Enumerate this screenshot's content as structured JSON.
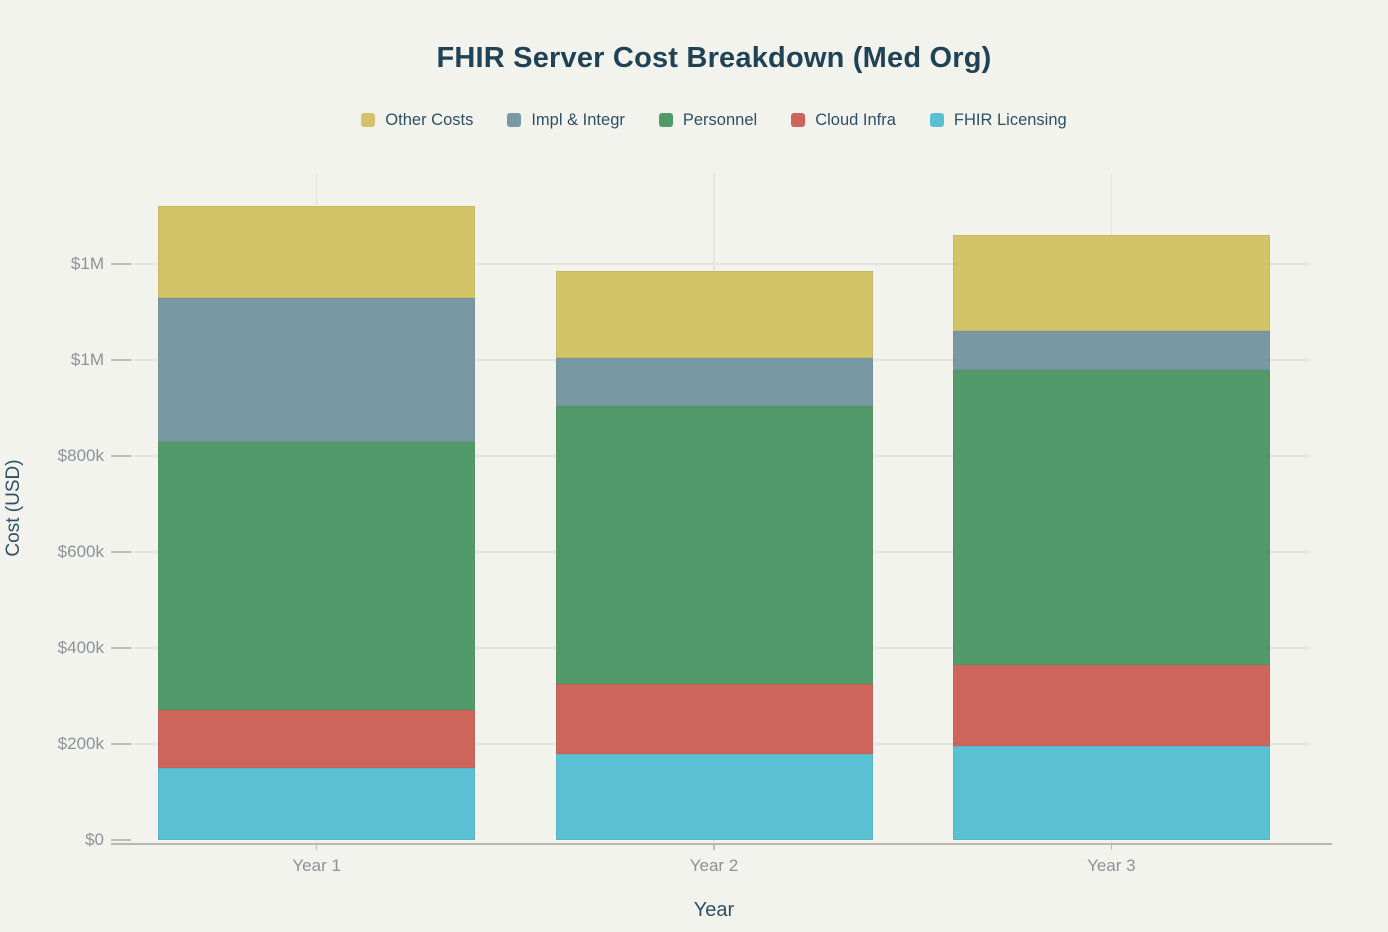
{
  "chart_data": {
    "type": "bar",
    "stacked": true,
    "title": "FHIR Server Cost Breakdown (Med Org)",
    "xlabel": "Year",
    "ylabel": "Cost (USD)",
    "categories": [
      "Year 1",
      "Year 2",
      "Year 3"
    ],
    "series": [
      {
        "name": "FHIR Licensing",
        "color": "#5ac0d4",
        "values": [
          150000,
          180000,
          195000
        ]
      },
      {
        "name": "Cloud Infra",
        "color": "#ce655b",
        "values": [
          120000,
          145000,
          170000
        ]
      },
      {
        "name": "Personnel",
        "color": "#529a6a",
        "values": [
          560000,
          580000,
          615000
        ]
      },
      {
        "name": "Impl & Integr",
        "color": "#7899a3",
        "values": [
          300000,
          100000,
          80000
        ]
      },
      {
        "name": "Other Costs",
        "color": "#d3c369",
        "values": [
          190000,
          180000,
          200000
        ]
      }
    ],
    "stack_order_bottom_to_top": [
      "FHIR Licensing",
      "Cloud Infra",
      "Personnel",
      "Impl & Integr",
      "Other Costs"
    ],
    "legend_order": [
      "Other Costs",
      "Impl & Integr",
      "Personnel",
      "Cloud Infra",
      "FHIR Licensing"
    ],
    "legend_position": "top-center",
    "y_ticks": [
      {
        "value": 0,
        "label": "$0"
      },
      {
        "value": 200000,
        "label": "$200k"
      },
      {
        "value": 400000,
        "label": "$400k"
      },
      {
        "value": 600000,
        "label": "$600k"
      },
      {
        "value": 800000,
        "label": "$800k"
      },
      {
        "value": 1000000,
        "label": "$1M"
      },
      {
        "value": 1200000,
        "label": "$1M"
      }
    ],
    "ylim": [
      0,
      1390000
    ],
    "grid": true,
    "bar_totals": [
      1320000,
      1185000,
      1260000
    ]
  },
  "colors": {
    "background": "#f3f3ee",
    "gridline": "#e5e5df",
    "axis_line": "#b9b9b3",
    "tick_mark": "#bcbcb6",
    "tick_label": "#8b9298",
    "title_text": "#1f4254",
    "axis_title_text": "#2e5064",
    "legend_text": "#2e5064"
  }
}
